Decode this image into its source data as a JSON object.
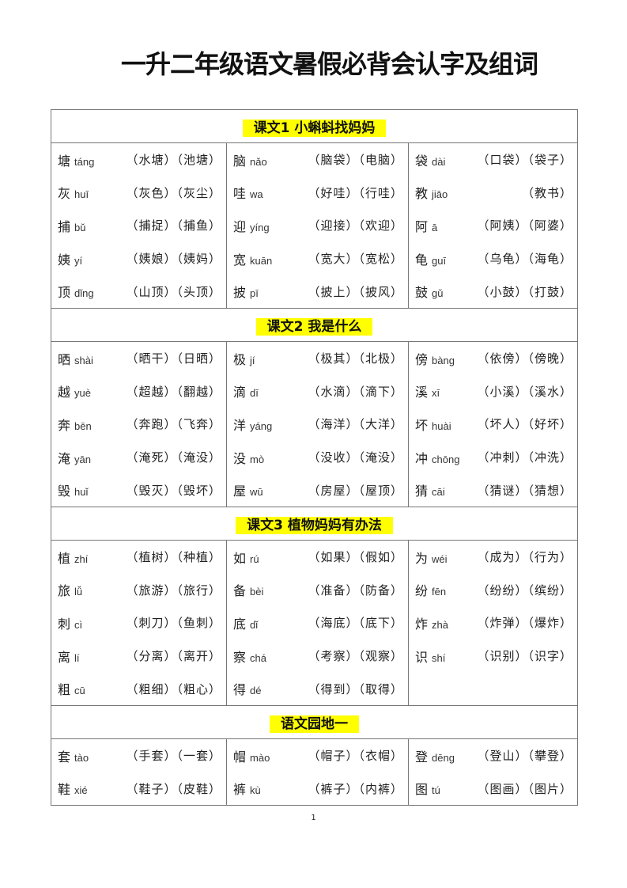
{
  "title": "一升二年级语文暑假必背会认字及组词",
  "page_number": "1",
  "highlight_color": "#ffff00",
  "sections": [
    {
      "heading": "课文1 小蝌蚪找妈妈",
      "columns": [
        [
          {
            "char": "塘",
            "pinyin": "táng",
            "words": "（水塘）（池塘）"
          },
          {
            "char": "灰",
            "pinyin": "huī",
            "words": "（灰色）（灰尘）"
          },
          {
            "char": "捕",
            "pinyin": "bǔ",
            "words": "（捕捉）（捕鱼）"
          },
          {
            "char": "姨",
            "pinyin": "yí",
            "words": "（姨娘）（姨妈）"
          },
          {
            "char": "顶",
            "pinyin": "dǐng",
            "words": "（山顶）（头顶）"
          }
        ],
        [
          {
            "char": "脑",
            "pinyin": "nǎo",
            "words": "（脑袋）（电脑）"
          },
          {
            "char": "哇",
            "pinyin": "wa",
            "words": "（好哇）（行哇）"
          },
          {
            "char": "迎",
            "pinyin": "yíng",
            "words": "（迎接）（欢迎）"
          },
          {
            "char": "宽",
            "pinyin": "kuān",
            "words": "（宽大）（宽松）"
          },
          {
            "char": "披",
            "pinyin": "pī",
            "words": "（披上）（披风）"
          }
        ],
        [
          {
            "char": "袋",
            "pinyin": "dài",
            "words": "（口袋）（袋子）"
          },
          {
            "char": "教",
            "pinyin": "jiāo",
            "words": "（教书）"
          },
          {
            "char": "阿",
            "pinyin": "ā",
            "words": "（阿姨）（阿婆）"
          },
          {
            "char": "龟",
            "pinyin": "guī",
            "words": "（乌龟）（海龟）"
          },
          {
            "char": "鼓",
            "pinyin": "gǔ",
            "words": "（小鼓）（打鼓）"
          }
        ]
      ]
    },
    {
      "heading": "课文2 我是什么",
      "columns": [
        [
          {
            "char": "晒",
            "pinyin": "shài",
            "words": "（晒干）（日晒）"
          },
          {
            "char": "越",
            "pinyin": "yuè",
            "words": "（超越）（翻越）"
          },
          {
            "char": "奔",
            "pinyin": "bēn",
            "words": "（奔跑）（飞奔）"
          },
          {
            "char": "淹",
            "pinyin": "yān",
            "words": "（淹死）（淹没）"
          },
          {
            "char": "毁",
            "pinyin": "huǐ",
            "words": "（毁灭）（毁坏）"
          }
        ],
        [
          {
            "char": "极",
            "pinyin": "jí",
            "words": "（极其）（北极）"
          },
          {
            "char": "滴",
            "pinyin": "dī",
            "words": "（水滴）（滴下）"
          },
          {
            "char": "洋",
            "pinyin": "yáng",
            "words": "（海洋）（大洋）"
          },
          {
            "char": "没",
            "pinyin": "mò",
            "words": "（没收）（淹没）"
          },
          {
            "char": "屋",
            "pinyin": "wū",
            "words": "（房屋）（屋顶）"
          }
        ],
        [
          {
            "char": "傍",
            "pinyin": "bàng",
            "words": "（依傍）（傍晚）"
          },
          {
            "char": "溪",
            "pinyin": "xī",
            "words": "（小溪）（溪水）"
          },
          {
            "char": "坏",
            "pinyin": "huài",
            "words": "（坏人）（好坏）"
          },
          {
            "char": "冲",
            "pinyin": "chōng",
            "words": "（冲刺）（冲洗）"
          },
          {
            "char": "猜",
            "pinyin": "cāi",
            "words": "（猜谜）（猜想）"
          }
        ]
      ]
    },
    {
      "heading": "课文3 植物妈妈有办法",
      "columns": [
        [
          {
            "char": "植",
            "pinyin": "zhí",
            "words": "（植树）（种植）"
          },
          {
            "char": "旅",
            "pinyin": "lǚ",
            "words": "（旅游）（旅行）"
          },
          {
            "char": "刺",
            "pinyin": "cì",
            "words": "（刺刀）（鱼刺）"
          },
          {
            "char": "离",
            "pinyin": "lí",
            "words": "（分离）（离开）"
          },
          {
            "char": "粗",
            "pinyin": "cū",
            "words": "（粗细）（粗心）"
          }
        ],
        [
          {
            "char": "如",
            "pinyin": "rú",
            "words": "（如果）（假如）"
          },
          {
            "char": "备",
            "pinyin": "bèi",
            "words": "（准备）（防备）"
          },
          {
            "char": "底",
            "pinyin": "dǐ",
            "words": "（海底）（底下）"
          },
          {
            "char": "察",
            "pinyin": "chá",
            "words": "（考察）（观察）"
          },
          {
            "char": "得",
            "pinyin": "dé",
            "words": "（得到）（取得）"
          }
        ],
        [
          {
            "char": "为",
            "pinyin": "wéi",
            "words": "（成为）（行为）"
          },
          {
            "char": "纷",
            "pinyin": "fēn",
            "words": "（纷纷）（缤纷）"
          },
          {
            "char": "炸",
            "pinyin": "zhà",
            "words": "（炸弹）（爆炸）"
          },
          {
            "char": "识",
            "pinyin": "shí",
            "words": "（识别）（识字）"
          }
        ]
      ]
    },
    {
      "heading": "语文园地一",
      "columns": [
        [
          {
            "char": "套",
            "pinyin": "tào",
            "words": "（手套）（一套）"
          },
          {
            "char": "鞋",
            "pinyin": "xié",
            "words": "（鞋子）（皮鞋）"
          }
        ],
        [
          {
            "char": "帽",
            "pinyin": "mào",
            "words": "（帽子）（衣帽）"
          },
          {
            "char": "裤",
            "pinyin": "kù",
            "words": "（裤子）（内裤）"
          }
        ],
        [
          {
            "char": "登",
            "pinyin": "dēng",
            "words": "（登山）（攀登）"
          },
          {
            "char": "图",
            "pinyin": "tú",
            "words": "（图画）（图片）"
          }
        ]
      ]
    }
  ]
}
